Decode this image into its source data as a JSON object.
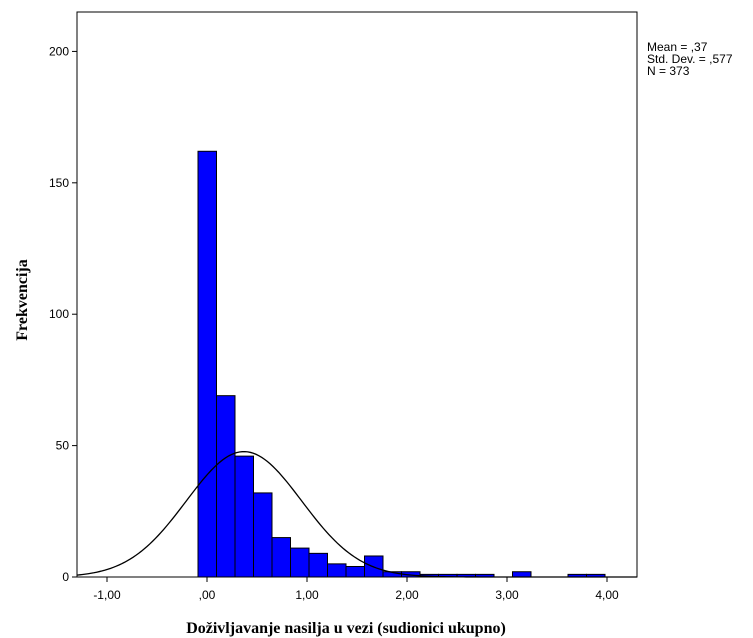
{
  "chart_data": {
    "type": "bar",
    "subtype": "histogram-with-normal-curve",
    "title": "",
    "xlabel": "Doživljavanje nasilja u vezi (sudionici ukupno)",
    "ylabel": "Frekvencija",
    "xlim": [
      -1.3,
      4.3
    ],
    "ylim": [
      0,
      215
    ],
    "x_ticks": [
      {
        "value": -1,
        "label": "-1,00"
      },
      {
        "value": 0,
        "label": ",00"
      },
      {
        "value": 1,
        "label": "1,00"
      },
      {
        "value": 2,
        "label": "2,00"
      },
      {
        "value": 3,
        "label": "3,00"
      },
      {
        "value": 4,
        "label": "4,00"
      }
    ],
    "y_ticks": [
      {
        "value": 0,
        "label": "0"
      },
      {
        "value": 50,
        "label": "50"
      },
      {
        "value": 100,
        "label": "100"
      },
      {
        "value": 150,
        "label": "150"
      },
      {
        "value": 200,
        "label": "200"
      }
    ],
    "bin_width": 0.185,
    "bins": [
      {
        "x0": -0.09,
        "count": 162
      },
      {
        "x0": 0.095,
        "count": 69
      },
      {
        "x0": 0.28,
        "count": 46
      },
      {
        "x0": 0.465,
        "count": 32
      },
      {
        "x0": 0.65,
        "count": 15
      },
      {
        "x0": 0.835,
        "count": 11
      },
      {
        "x0": 1.02,
        "count": 9
      },
      {
        "x0": 1.205,
        "count": 5
      },
      {
        "x0": 1.39,
        "count": 4
      },
      {
        "x0": 1.575,
        "count": 8
      },
      {
        "x0": 1.76,
        "count": 2
      },
      {
        "x0": 1.945,
        "count": 2
      },
      {
        "x0": 2.13,
        "count": 1
      },
      {
        "x0": 2.315,
        "count": 1
      },
      {
        "x0": 2.5,
        "count": 1
      },
      {
        "x0": 2.685,
        "count": 1
      },
      {
        "x0": 3.055,
        "count": 2
      },
      {
        "x0": 3.61,
        "count": 1
      },
      {
        "x0": 3.795,
        "count": 1
      }
    ],
    "normal_curve": {
      "mean": 0.37,
      "sd": 0.577,
      "n": 373
    },
    "bar_color": "#0000ff",
    "bar_edge_color": "#000000",
    "curve_color": "#000000",
    "grid": false,
    "legend": "none",
    "stats": {
      "placement": "top-right",
      "lines": [
        "Mean = ,37",
        "Std. Dev. = ,577",
        "N = 373"
      ]
    }
  }
}
